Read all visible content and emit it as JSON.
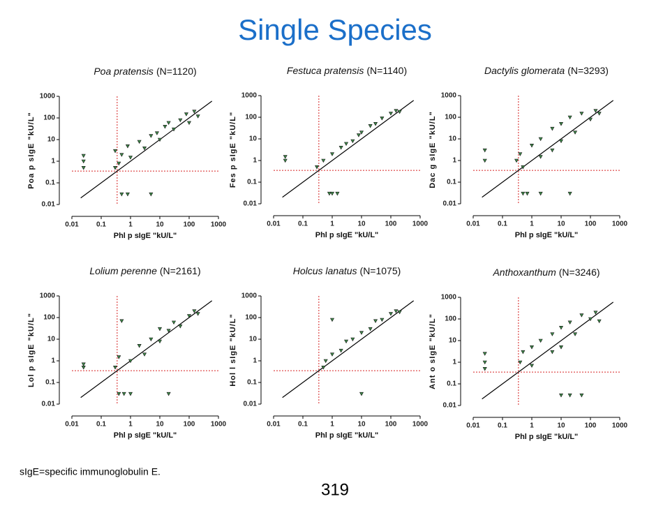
{
  "header": {
    "title": "Single Species"
  },
  "footnote": "sIgE=specific immunoglobulin E.",
  "page_number": "319",
  "chart_data": [
    {
      "type": "scatter",
      "species": "Poa pratensis",
      "n_label": "(N=1120)",
      "x_label": "Phl p sIgE \"kU/L\"",
      "y_label": "Poa p sIgE \"kU/L\"",
      "log_scale": true,
      "xlim": [
        0.01,
        1000
      ],
      "ylim": [
        0.01,
        1000
      ],
      "xticks": [
        0.01,
        0.1,
        1,
        10,
        100,
        1000
      ],
      "yticks": [
        0.01,
        0.1,
        1,
        10,
        100,
        1000
      ],
      "cutoff": 0.35,
      "identity_line": {
        "x": [
          0.02,
          600
        ],
        "y": [
          0.02,
          600
        ]
      },
      "color": "#3f8a4a",
      "x": [
        0.025,
        0.025,
        0.025,
        0.3,
        0.3,
        0.4,
        0.5,
        0.8,
        1,
        2,
        3,
        5,
        8,
        10,
        15,
        20,
        30,
        50,
        80,
        100,
        150,
        200,
        0.5,
        0.8,
        5
      ],
      "y": [
        1,
        1.8,
        0.5,
        0.5,
        3,
        0.8,
        2,
        5,
        1.5,
        8,
        4,
        15,
        20,
        10,
        40,
        60,
        30,
        80,
        150,
        60,
        200,
        120,
        0.03,
        0.03,
        0.03
      ]
    },
    {
      "type": "scatter",
      "species": "Festuca pratensis",
      "n_label": "(N=1140)",
      "x_label": "Phl p sIgE \"kU/L\"",
      "y_label": "Fes p sIgE \"kU/L\"",
      "log_scale": true,
      "xlim": [
        0.01,
        1000
      ],
      "ylim": [
        0.01,
        1000
      ],
      "xticks": [
        0.01,
        0.1,
        1,
        10,
        100,
        1000
      ],
      "yticks": [
        0.01,
        0.1,
        1,
        10,
        100,
        1000
      ],
      "cutoff": 0.35,
      "identity_line": {
        "x": [
          0.02,
          600
        ],
        "y": [
          0.02,
          600
        ]
      },
      "color": "#3f8a4a",
      "x": [
        0.025,
        0.025,
        0.3,
        0.5,
        1,
        2,
        3,
        5,
        8,
        10,
        20,
        30,
        50,
        100,
        150,
        200,
        0.8,
        1,
        1.5
      ],
      "y": [
        1,
        1.5,
        0.5,
        1,
        2,
        4,
        6,
        8,
        15,
        20,
        40,
        50,
        90,
        150,
        200,
        180,
        0.03,
        0.03,
        0.03
      ]
    },
    {
      "type": "scatter",
      "species": "Dactylis glomerata",
      "n_label": "(N=3293)",
      "x_label": "Phl p sIgE \"kU/L\"",
      "y_label": "Dac g sIgE \"kU/L\"",
      "log_scale": true,
      "xlim": [
        0.01,
        1000
      ],
      "ylim": [
        0.01,
        1000
      ],
      "xticks": [
        0.01,
        0.1,
        1,
        10,
        100,
        1000
      ],
      "yticks": [
        0.01,
        0.1,
        1,
        10,
        100,
        1000
      ],
      "cutoff": 0.35,
      "identity_line": {
        "x": [
          0.02,
          600
        ],
        "y": [
          0.02,
          600
        ]
      },
      "color": "#3f8a4a",
      "x": [
        0.025,
        0.025,
        0.3,
        0.4,
        0.5,
        1,
        2,
        2,
        5,
        5,
        10,
        10,
        20,
        30,
        50,
        100,
        150,
        200,
        0.5,
        0.7,
        2,
        20
      ],
      "y": [
        1,
        3,
        1,
        2,
        0.5,
        5,
        10,
        1.5,
        30,
        3,
        50,
        8,
        100,
        20,
        150,
        80,
        200,
        150,
        0.03,
        0.03,
        0.03,
        0.03
      ]
    },
    {
      "type": "scatter",
      "species": "Lolium perenne",
      "n_label": "(N=2161)",
      "x_label": "Phl p sIgE \"kU/L\"",
      "y_label": "Lol p sIgE \"kU/L\"",
      "log_scale": true,
      "xlim": [
        0.01,
        1000
      ],
      "ylim": [
        0.01,
        1000
      ],
      "xticks": [
        0.01,
        0.1,
        1,
        10,
        100,
        1000
      ],
      "yticks": [
        0.01,
        0.1,
        1,
        10,
        100,
        1000
      ],
      "cutoff": 0.35,
      "identity_line": {
        "x": [
          0.02,
          600
        ],
        "y": [
          0.02,
          600
        ]
      },
      "color": "#3f8a4a",
      "x": [
        0.025,
        0.025,
        0.3,
        0.4,
        1,
        2,
        3,
        5,
        10,
        10,
        20,
        30,
        50,
        100,
        150,
        200,
        0.5,
        0.4,
        0.6,
        1,
        20
      ],
      "y": [
        0.7,
        0.5,
        0.5,
        1.5,
        1,
        5,
        2,
        10,
        8,
        30,
        25,
        60,
        40,
        120,
        200,
        150,
        70,
        0.03,
        0.03,
        0.03,
        0.03
      ]
    },
    {
      "type": "scatter",
      "species": "Holcus lanatus",
      "n_label": "(N=1075)",
      "x_label": "Phl p sIgE \"kU/L\"",
      "y_label": "Hol l sIgE \"kU/L\"",
      "log_scale": true,
      "xlim": [
        0.01,
        1000
      ],
      "ylim": [
        0.01,
        1000
      ],
      "xticks": [
        0.01,
        0.1,
        1,
        10,
        100,
        1000
      ],
      "yticks": [
        0.01,
        0.1,
        1,
        10,
        100,
        1000
      ],
      "cutoff": 0.35,
      "identity_line": {
        "x": [
          0.02,
          600
        ],
        "y": [
          0.02,
          600
        ]
      },
      "color": "#3f8a4a",
      "x": [
        0.5,
        0.6,
        1,
        1,
        2,
        3,
        5,
        10,
        20,
        30,
        50,
        100,
        150,
        200,
        10
      ],
      "y": [
        0.5,
        1,
        80,
        2,
        3,
        8,
        10,
        20,
        30,
        70,
        80,
        150,
        200,
        180,
        0.03
      ]
    },
    {
      "type": "scatter",
      "species": "Anthoxanthum",
      "n_label": "(N=3246)",
      "x_label": "Phl p sIgE \"kU/L\"",
      "y_label": "Ant o sIgE \"kU/L\"",
      "log_scale": true,
      "xlim": [
        0.01,
        1000
      ],
      "ylim": [
        0.01,
        1000
      ],
      "xticks": [
        0.01,
        0.1,
        1,
        10,
        100,
        1000
      ],
      "yticks": [
        0.01,
        0.1,
        1,
        10,
        100,
        1000
      ],
      "cutoff": 0.35,
      "identity_line": {
        "x": [
          0.02,
          600
        ],
        "y": [
          0.02,
          600
        ]
      },
      "color": "#3f8a4a",
      "x": [
        0.025,
        0.025,
        0.025,
        0.4,
        0.5,
        1,
        1,
        2,
        5,
        5,
        10,
        10,
        20,
        30,
        50,
        100,
        150,
        200,
        10,
        20,
        50
      ],
      "y": [
        1,
        2.5,
        0.5,
        1,
        3,
        5,
        0.7,
        10,
        20,
        3,
        40,
        5,
        70,
        20,
        150,
        100,
        200,
        80,
        0.03,
        0.03,
        0.03
      ]
    }
  ]
}
